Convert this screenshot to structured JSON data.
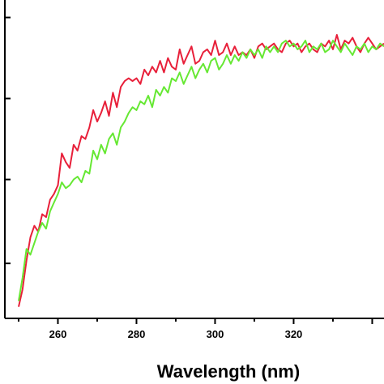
{
  "chart_data": {
    "type": "line",
    "xlabel": "Wavelength (nm)",
    "ylabel": "",
    "xlim": [
      246.5,
      343
    ],
    "ylim": [
      0,
      1.05
    ],
    "x_ticks": [
      260,
      280,
      300,
      320
    ],
    "x_tick_labels": [
      "260",
      "280",
      "300",
      "320"
    ],
    "y_tick_count": 4,
    "grid": false,
    "legend": "none",
    "series": [
      {
        "color": "#e8203a",
        "x": [
          250,
          251,
          252,
          253,
          254,
          255,
          256,
          257,
          258,
          259,
          260,
          261,
          262,
          263,
          264,
          265,
          266,
          267,
          268,
          269,
          270,
          271,
          272,
          273,
          274,
          275,
          276,
          277,
          278,
          279,
          280,
          281,
          282,
          283,
          284,
          285,
          286,
          287,
          288,
          289,
          290,
          291,
          292,
          293,
          294,
          295,
          296,
          297,
          298,
          299,
          300,
          301,
          302,
          303,
          304,
          305,
          306,
          307,
          308,
          309,
          310,
          311,
          312,
          313,
          314,
          315,
          316,
          317,
          318,
          319,
          320,
          321,
          322,
          323,
          324,
          325,
          326,
          327,
          328,
          329,
          330,
          331,
          332,
          333,
          334,
          335,
          336,
          337,
          338,
          339,
          340,
          341,
          342,
          343
        ],
        "y": [
          0.04,
          0.1,
          0.2,
          0.28,
          0.32,
          0.3,
          0.36,
          0.35,
          0.41,
          0.43,
          0.46,
          0.57,
          0.54,
          0.52,
          0.6,
          0.58,
          0.63,
          0.62,
          0.66,
          0.72,
          0.68,
          0.71,
          0.75,
          0.7,
          0.78,
          0.73,
          0.8,
          0.82,
          0.83,
          0.82,
          0.83,
          0.81,
          0.86,
          0.84,
          0.87,
          0.85,
          0.89,
          0.85,
          0.9,
          0.87,
          0.86,
          0.93,
          0.88,
          0.91,
          0.94,
          0.88,
          0.89,
          0.92,
          0.93,
          0.91,
          0.96,
          0.91,
          0.92,
          0.95,
          0.91,
          0.94,
          0.91,
          0.92,
          0.91,
          0.93,
          0.9,
          0.94,
          0.95,
          0.93,
          0.94,
          0.95,
          0.93,
          0.92,
          0.95,
          0.96,
          0.94,
          0.95,
          0.92,
          0.94,
          0.95,
          0.93,
          0.92,
          0.95,
          0.94,
          0.96,
          0.93,
          0.98,
          0.93,
          0.96,
          0.95,
          0.97,
          0.94,
          0.92,
          0.95,
          0.97,
          0.95,
          0.93,
          0.94,
          0.95
        ]
      },
      {
        "color": "#66e833",
        "x": [
          250,
          251,
          252,
          253,
          254,
          255,
          256,
          257,
          258,
          259,
          260,
          261,
          262,
          263,
          264,
          265,
          266,
          267,
          268,
          269,
          270,
          271,
          272,
          273,
          274,
          275,
          276,
          277,
          278,
          279,
          280,
          281,
          282,
          283,
          284,
          285,
          286,
          287,
          288,
          289,
          290,
          291,
          292,
          293,
          294,
          295,
          296,
          297,
          298,
          299,
          300,
          301,
          302,
          303,
          304,
          305,
          306,
          307,
          308,
          309,
          310,
          311,
          312,
          313,
          314,
          315,
          316,
          317,
          318,
          319,
          320,
          321,
          322,
          323,
          324,
          325,
          326,
          327,
          328,
          329,
          330,
          331,
          332,
          333,
          334,
          335,
          336,
          337,
          338,
          339,
          340,
          341,
          342,
          343
        ],
        "y": [
          0.06,
          0.14,
          0.24,
          0.22,
          0.26,
          0.3,
          0.33,
          0.31,
          0.37,
          0.4,
          0.43,
          0.47,
          0.45,
          0.46,
          0.48,
          0.49,
          0.47,
          0.51,
          0.5,
          0.58,
          0.55,
          0.6,
          0.57,
          0.62,
          0.64,
          0.6,
          0.66,
          0.68,
          0.71,
          0.73,
          0.72,
          0.75,
          0.74,
          0.77,
          0.73,
          0.79,
          0.77,
          0.8,
          0.78,
          0.83,
          0.82,
          0.85,
          0.81,
          0.84,
          0.87,
          0.83,
          0.86,
          0.88,
          0.85,
          0.89,
          0.9,
          0.86,
          0.88,
          0.91,
          0.88,
          0.91,
          0.89,
          0.92,
          0.9,
          0.93,
          0.91,
          0.93,
          0.9,
          0.94,
          0.92,
          0.94,
          0.92,
          0.95,
          0.96,
          0.94,
          0.95,
          0.93,
          0.94,
          0.96,
          0.92,
          0.94,
          0.93,
          0.95,
          0.92,
          0.93,
          0.96,
          0.94,
          0.92,
          0.95,
          0.93,
          0.91,
          0.94,
          0.93,
          0.95,
          0.92,
          0.94,
          0.93,
          0.95,
          0.94
        ]
      }
    ]
  }
}
